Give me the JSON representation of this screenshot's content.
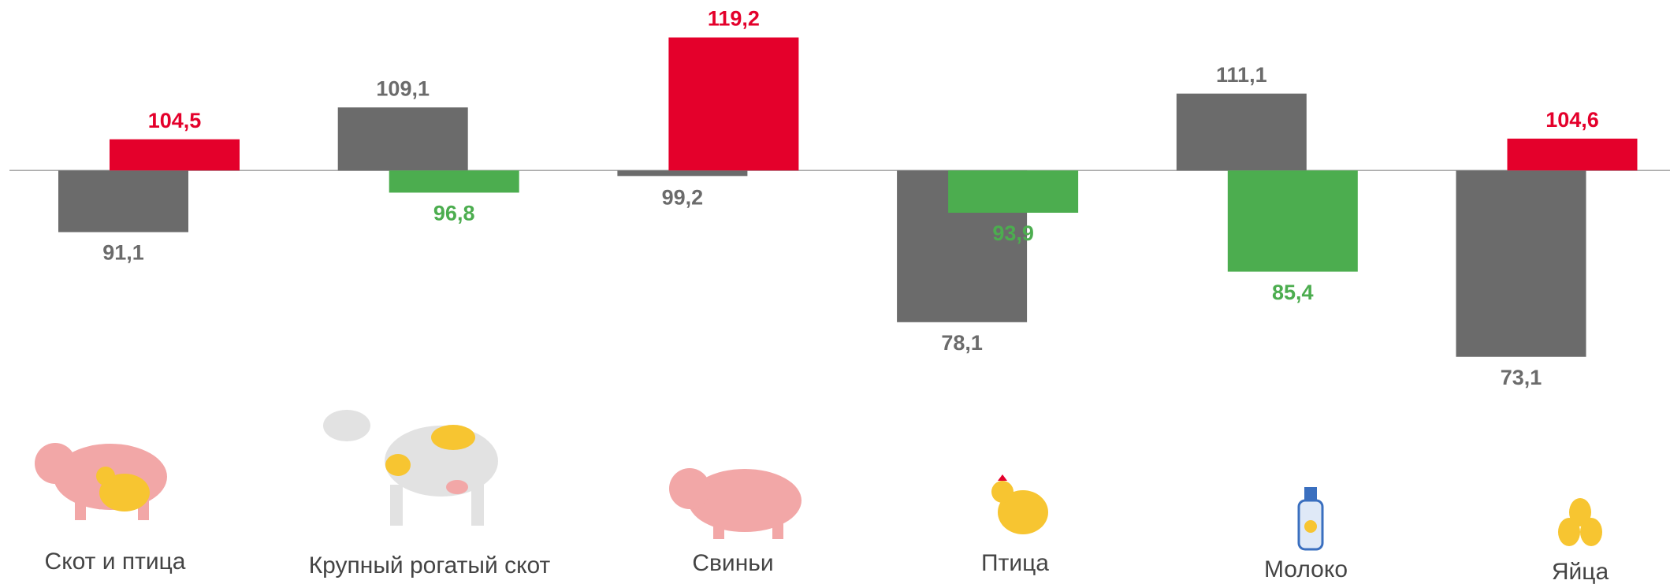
{
  "chart_data": {
    "type": "bar",
    "categories": [
      "Скот и птица",
      "Крупный рогатый скот",
      "Свиньи",
      "Птица",
      "Молоко",
      "Яйца"
    ],
    "series": [
      {
        "color": "#6b6b6b",
        "values": [
          91.1,
          109.1,
          99.2,
          78.1,
          111.1,
          73.1
        ],
        "value_labels": [
          "91,1",
          "109,1",
          "99,2",
          "78,1",
          "111,1",
          "73,1"
        ]
      },
      {
        "color": [
          "#e4002b",
          "#4cad4f",
          "#e4002b",
          "#4cad4f",
          "#4cad4f",
          "#e4002b"
        ],
        "values": [
          104.5,
          96.8,
          119.2,
          93.9,
          85.4,
          104.6
        ],
        "value_labels": [
          "104,5",
          "96,8",
          "119,2",
          "93,9",
          "85,4",
          "104,6"
        ]
      }
    ],
    "baseline": 100,
    "ylim": [
      70,
      120
    ]
  }
}
